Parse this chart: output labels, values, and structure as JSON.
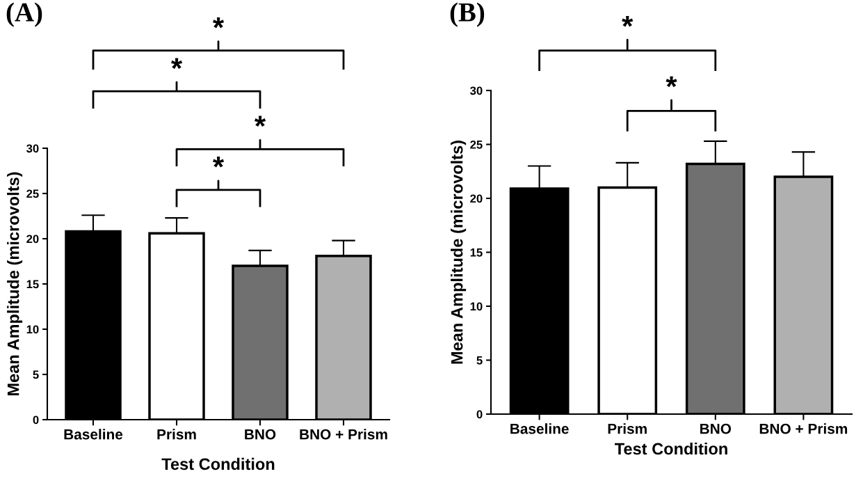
{
  "chart_data": [
    {
      "type": "bar",
      "title": "(A)",
      "xlabel": "Test Condition",
      "ylabel": "Mean Amplitude (microvolts)",
      "categories": [
        "Baseline",
        "Prism",
        "BNO",
        "BNO + Prism"
      ],
      "values": [
        20.8,
        20.6,
        17.0,
        18.1
      ],
      "errors": [
        1.8,
        1.7,
        1.7,
        1.7
      ],
      "colors": [
        "#000000",
        "#ffffff",
        "#707070",
        "#b0b0b0"
      ],
      "ylim": [
        0,
        30
      ],
      "yticks": [
        0,
        5,
        10,
        15,
        20,
        25,
        30
      ],
      "grid": false,
      "legend": false,
      "annotations": [
        "*",
        "*",
        "*",
        "*"
      ]
    },
    {
      "type": "bar",
      "title": "(B)",
      "xlabel": "Test Condition",
      "ylabel": "Mean Amplitude (microvolts)",
      "categories": [
        "Baseline",
        "Prism",
        "BNO",
        "BNO + Prism"
      ],
      "values": [
        20.9,
        21.0,
        23.2,
        22.0
      ],
      "errors": [
        2.1,
        2.3,
        2.1,
        2.3
      ],
      "colors": [
        "#000000",
        "#ffffff",
        "#707070",
        "#b0b0b0"
      ],
      "ylim": [
        0,
        30
      ],
      "yticks": [
        0,
        5,
        10,
        15,
        20,
        25,
        30
      ],
      "grid": false,
      "legend": false,
      "annotations": [
        "*",
        "*"
      ]
    }
  ]
}
